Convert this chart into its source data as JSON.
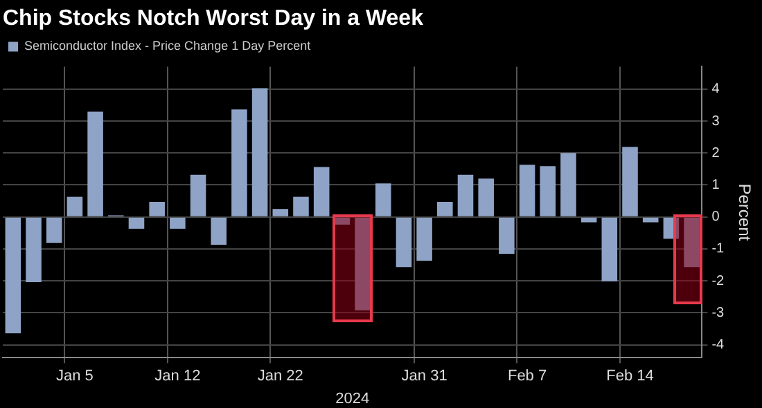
{
  "chart_data": {
    "type": "bar",
    "title": "Chip Stocks Notch Worst Day in a Week",
    "xlabel": "2024",
    "ylabel": "Percent",
    "categories": [
      null,
      null,
      null,
      "Jan 5",
      null,
      null,
      null,
      null,
      "Jan 12",
      null,
      null,
      null,
      null,
      "Jan 22",
      null,
      null,
      null,
      null,
      null,
      null,
      "Jan 31",
      null,
      null,
      null,
      null,
      "Feb 7",
      null,
      null,
      null,
      null,
      "Feb 14",
      null,
      null,
      null
    ],
    "series": [
      {
        "name": "Semiconductor Index - Price Change 1 Day Percent",
        "color": "#8ea3c6",
        "values": [
          -3.64,
          -2.04,
          -0.81,
          0.63,
          3.29,
          0.05,
          -0.37,
          0.47,
          -0.37,
          1.32,
          -0.87,
          3.36,
          4.03,
          0.25,
          0.63,
          1.56,
          -0.24,
          -2.92,
          1.05,
          -1.57,
          -1.37,
          0.47,
          1.32,
          1.2,
          -1.15,
          1.63,
          1.59,
          2.0,
          -0.17,
          -2.01,
          2.19,
          -0.17,
          -0.68,
          -1.57
        ]
      }
    ],
    "ylim": [
      -4.4,
      4.7
    ],
    "yticks": [
      -4,
      -3,
      -2,
      -1,
      0,
      1,
      2,
      3,
      4
    ],
    "grid": true,
    "legend": "top left"
  }
}
